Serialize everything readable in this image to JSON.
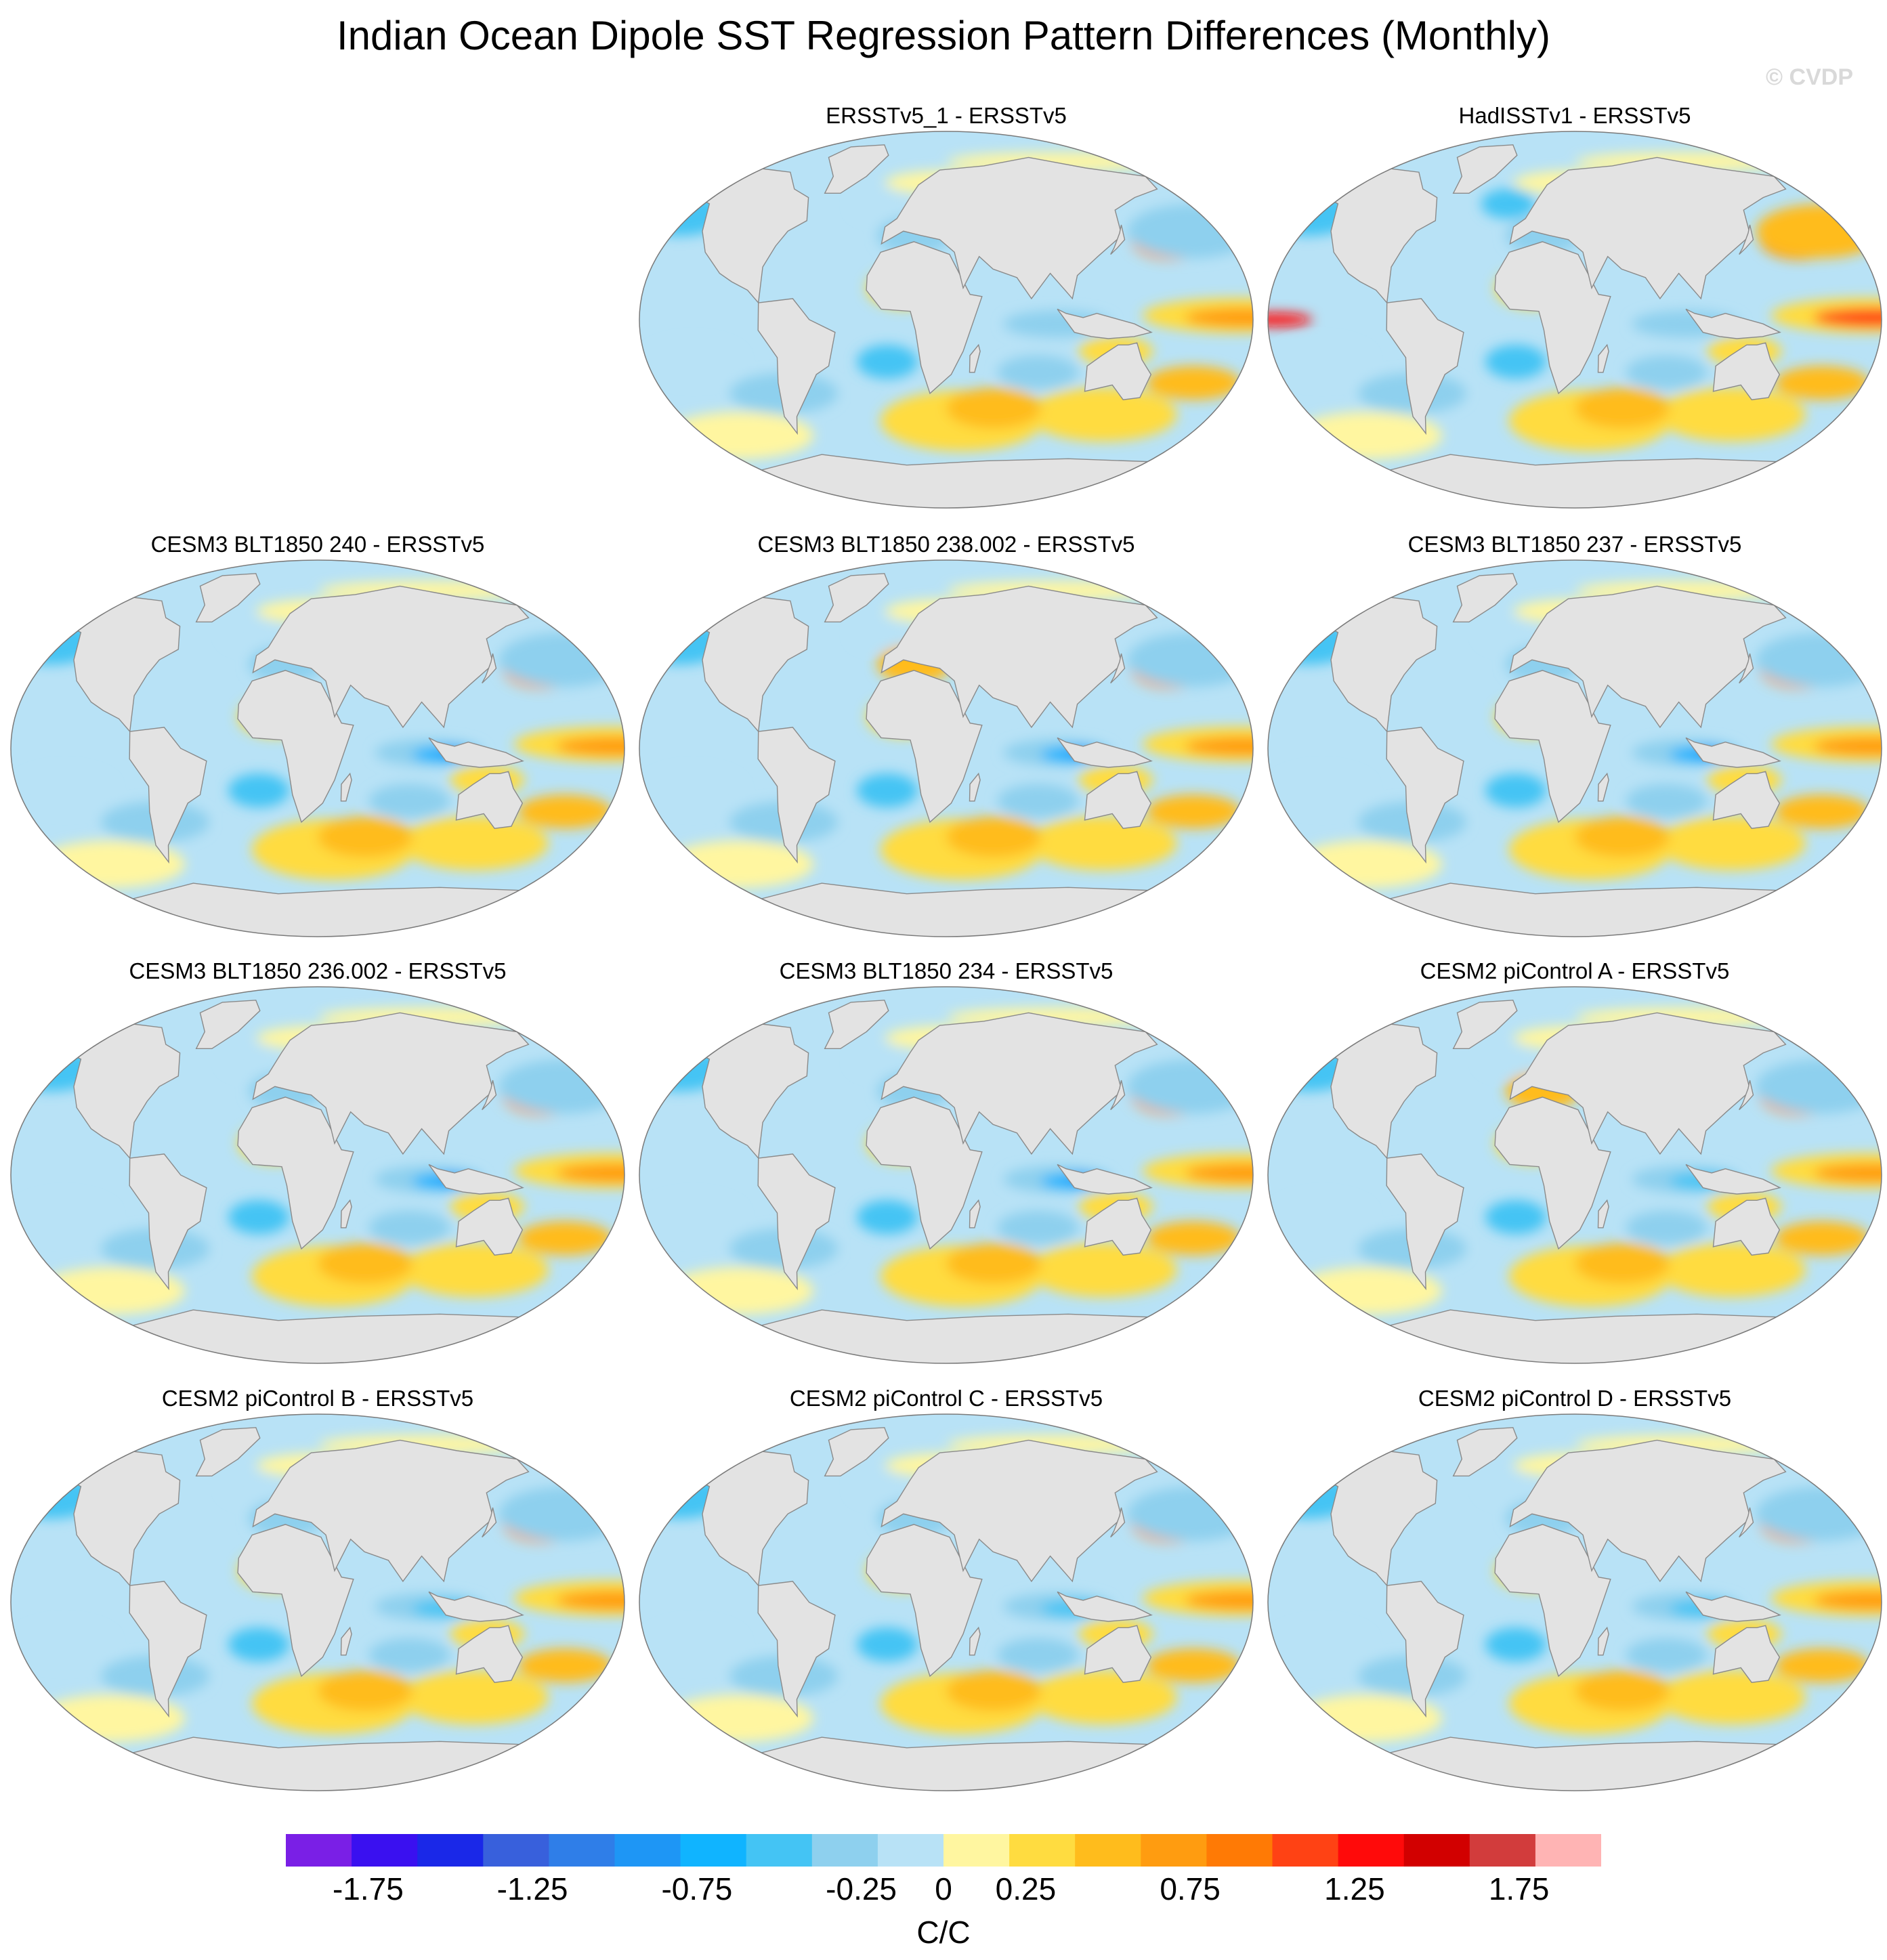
{
  "title": "Indian Ocean Dipole SST Regression Pattern Differences (Monthly)",
  "credit": "© CVDP",
  "chart_data": {
    "type": "heatmap",
    "title": "Indian Ocean Dipole SST Regression Pattern Differences (Monthly)",
    "projection": "Winkel Tripel (global)",
    "units": "C/C",
    "panels": [
      {
        "name": "ERSSTv5_1 - ERSSTv5",
        "row": 0,
        "col": 1,
        "ind": "weak",
        "pac": "warm",
        "na": "neutral"
      },
      {
        "name": "HadISSTv1 - ERSSTv5",
        "row": 0,
        "col": 2,
        "ind": "warm",
        "pac": "strong",
        "na": "cool"
      },
      {
        "name": "CESM3 BLT1850 240 - ERSSTv5",
        "row": 1,
        "col": 0,
        "ind": "strong",
        "pac": "warm",
        "na": "neutral"
      },
      {
        "name": "CESM3 BLT1850 238.002 - ERSSTv5",
        "row": 1,
        "col": 1,
        "ind": "strong",
        "pac": "warm",
        "na": "warm"
      },
      {
        "name": "CESM3 BLT1850 237 - ERSSTv5",
        "row": 1,
        "col": 2,
        "ind": "strong",
        "pac": "warm",
        "na": "neutral"
      },
      {
        "name": "CESM3 BLT1850 236.002 - ERSSTv5",
        "row": 2,
        "col": 0,
        "ind": "strong",
        "pac": "warm",
        "na": "neutral"
      },
      {
        "name": "CESM3 BLT1850 234 - ERSSTv5",
        "row": 2,
        "col": 1,
        "ind": "strong",
        "pac": "warm",
        "na": "neutral"
      },
      {
        "name": "CESM2 piControl A - ERSSTv5",
        "row": 2,
        "col": 2,
        "ind": "medium",
        "pac": "warm",
        "na": "warm"
      },
      {
        "name": "CESM2 piControl B - ERSSTv5",
        "row": 3,
        "col": 0,
        "ind": "medium",
        "pac": "warm",
        "na": "neutral"
      },
      {
        "name": "CESM2 piControl C - ERSSTv5",
        "row": 3,
        "col": 1,
        "ind": "medium",
        "pac": "warm",
        "na": "neutral"
      },
      {
        "name": "CESM2 piControl D - ERSSTv5",
        "row": 3,
        "col": 2,
        "ind": "medium",
        "pac": "warm",
        "na": "neutral"
      }
    ],
    "colorbar": {
      "colors": [
        "#7a1fe6",
        "#3a10f0",
        "#1a28e8",
        "#3860dc",
        "#2f7ee8",
        "#1e96f5",
        "#10b4ff",
        "#44c4f4",
        "#8ed0ee",
        "#b8e2f6",
        "#fff6a0",
        "#ffdc40",
        "#ffbc1c",
        "#ff9c10",
        "#ff7a05",
        "#ff4214",
        "#ff0a0a",
        "#d20000",
        "#d23c3c",
        "#ffb4b4"
      ],
      "tick_labels": [
        "-1.75",
        "-1.25",
        "-0.75",
        "-0.25",
        "0",
        "0.25",
        "0.75",
        "1.25",
        "1.75"
      ],
      "tick_values": [
        -1.75,
        -1.25,
        -0.75,
        -0.25,
        0,
        0.25,
        0.75,
        1.25,
        1.75
      ],
      "range": [
        -2.0,
        2.0
      ],
      "units": "C/C"
    }
  }
}
